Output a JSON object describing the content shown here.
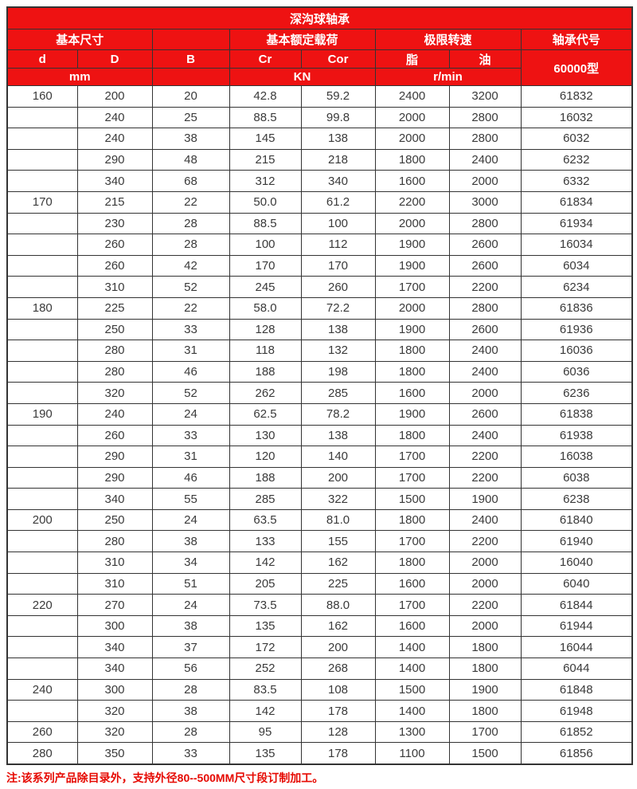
{
  "title": "深沟球轴承",
  "header": {
    "basic_size": "基本尺寸",
    "rated_load": "基本额定载荷",
    "limit_speed": "极限转速",
    "bearing_code": "轴承代号",
    "d": "d",
    "D": "D",
    "B": "B",
    "Cr": "Cr",
    "Cor": "Cor",
    "grease": "脂",
    "oil": "油",
    "unit_mm": "mm",
    "unit_kn": "KN",
    "unit_rpm": "r/min",
    "code_type": "60000型"
  },
  "rows": [
    [
      "160",
      "200",
      "20",
      "42.8",
      "59.2",
      "2400",
      "3200",
      "61832"
    ],
    [
      "",
      "240",
      "25",
      "88.5",
      "99.8",
      "2000",
      "2800",
      "16032"
    ],
    [
      "",
      "240",
      "38",
      "145",
      "138",
      "2000",
      "2800",
      "6032"
    ],
    [
      "",
      "290",
      "48",
      "215",
      "218",
      "1800",
      "2400",
      "6232"
    ],
    [
      "",
      "340",
      "68",
      "312",
      "340",
      "1600",
      "2000",
      "6332"
    ],
    [
      "170",
      "215",
      "22",
      "50.0",
      "61.2",
      "2200",
      "3000",
      "61834"
    ],
    [
      "",
      "230",
      "28",
      "88.5",
      "100",
      "2000",
      "2800",
      "61934"
    ],
    [
      "",
      "260",
      "28",
      "100",
      "112",
      "1900",
      "2600",
      "16034"
    ],
    [
      "",
      "260",
      "42",
      "170",
      "170",
      "1900",
      "2600",
      "6034"
    ],
    [
      "",
      "310",
      "52",
      "245",
      "260",
      "1700",
      "2200",
      "6234"
    ],
    [
      "180",
      "225",
      "22",
      "58.0",
      "72.2",
      "2000",
      "2800",
      "61836"
    ],
    [
      "",
      "250",
      "33",
      "128",
      "138",
      "1900",
      "2600",
      "61936"
    ],
    [
      "",
      "280",
      "31",
      "118",
      "132",
      "1800",
      "2400",
      "16036"
    ],
    [
      "",
      "280",
      "46",
      "188",
      "198",
      "1800",
      "2400",
      "6036"
    ],
    [
      "",
      "320",
      "52",
      "262",
      "285",
      "1600",
      "2000",
      "6236"
    ],
    [
      "190",
      "240",
      "24",
      "62.5",
      "78.2",
      "1900",
      "2600",
      "61838"
    ],
    [
      "",
      "260",
      "33",
      "130",
      "138",
      "1800",
      "2400",
      "61938"
    ],
    [
      "",
      "290",
      "31",
      "120",
      "140",
      "1700",
      "2200",
      "16038"
    ],
    [
      "",
      "290",
      "46",
      "188",
      "200",
      "1700",
      "2200",
      "6038"
    ],
    [
      "",
      "340",
      "55",
      "285",
      "322",
      "1500",
      "1900",
      "6238"
    ],
    [
      "200",
      "250",
      "24",
      "63.5",
      "81.0",
      "1800",
      "2400",
      "61840"
    ],
    [
      "",
      "280",
      "38",
      "133",
      "155",
      "1700",
      "2200",
      "61940"
    ],
    [
      "",
      "310",
      "34",
      "142",
      "162",
      "1800",
      "2000",
      "16040"
    ],
    [
      "",
      "310",
      "51",
      "205",
      "225",
      "1600",
      "2000",
      "6040"
    ],
    [
      "220",
      "270",
      "24",
      "73.5",
      "88.0",
      "1700",
      "2200",
      "61844"
    ],
    [
      "",
      "300",
      "38",
      "135",
      "162",
      "1600",
      "2000",
      "61944"
    ],
    [
      "",
      "340",
      "37",
      "172",
      "200",
      "1400",
      "1800",
      "16044"
    ],
    [
      "",
      "340",
      "56",
      "252",
      "268",
      "1400",
      "1800",
      "6044"
    ],
    [
      "240",
      "300",
      "28",
      "83.5",
      "108",
      "1500",
      "1900",
      "61848"
    ],
    [
      "",
      "320",
      "38",
      "142",
      "178",
      "1400",
      "1800",
      "61948"
    ],
    [
      "260",
      "320",
      "28",
      "95",
      "128",
      "1300",
      "1700",
      "61852"
    ],
    [
      "280",
      "350",
      "33",
      "135",
      "178",
      "1100",
      "1500",
      "61856"
    ]
  ],
  "note": "注:该系列产品除目录外，支持外径80--500MM尺寸段订制加工。",
  "colors": {
    "header_bg": "#ee1212",
    "border": "#333333",
    "text": "#3a3a3a",
    "note": "#e60800"
  }
}
